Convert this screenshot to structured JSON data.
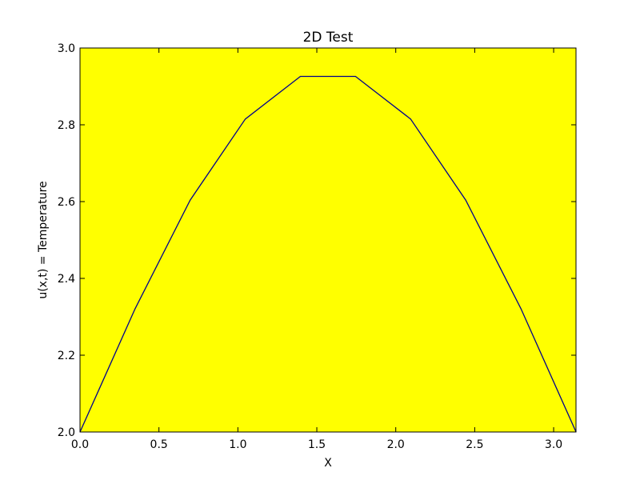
{
  "chart_data": {
    "type": "line",
    "title": "2D Test",
    "xlabel": "X",
    "ylabel": "u(x,t) = Temperature",
    "xlim": [
      0.0,
      3.14159
    ],
    "ylim": [
      2.0,
      3.0
    ],
    "xticks": [
      0.0,
      0.5,
      1.0,
      1.5,
      2.0,
      2.5,
      3.0
    ],
    "xtick_labels": [
      "0.0",
      "0.5",
      "1.0",
      "1.5",
      "2.0",
      "2.5",
      "3.0"
    ],
    "yticks": [
      2.0,
      2.2,
      2.4,
      2.6,
      2.8,
      3.0
    ],
    "ytick_labels": [
      "2.0",
      "2.2",
      "2.4",
      "2.6",
      "2.8",
      "3.0"
    ],
    "grid": false,
    "background_color": "#ffff00",
    "series": [
      {
        "name": "u",
        "color": "#00008b",
        "x": [
          0.0,
          0.349,
          0.698,
          1.047,
          1.396,
          1.745,
          2.094,
          2.443,
          2.793,
          3.142
        ],
        "y": [
          2.0,
          2.321,
          2.604,
          2.815,
          2.926,
          2.926,
          2.815,
          2.604,
          2.321,
          2.0
        ]
      }
    ]
  }
}
